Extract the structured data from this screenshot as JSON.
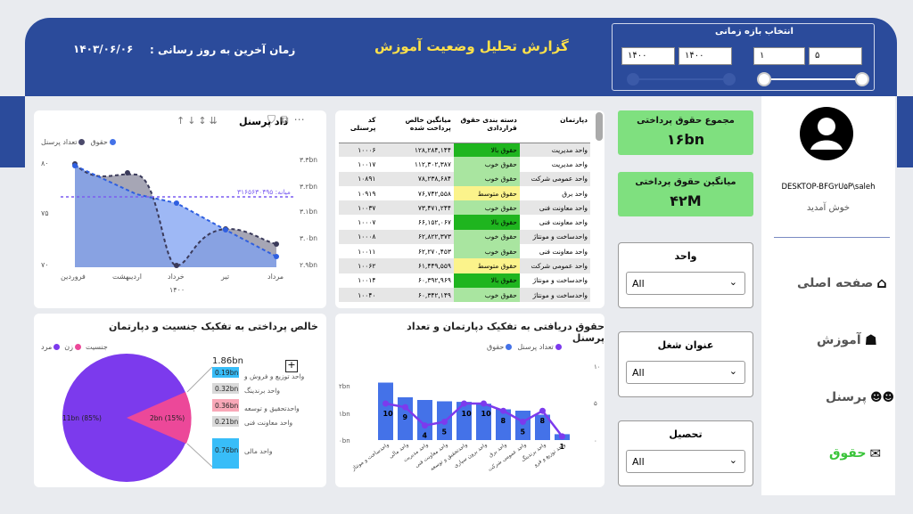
{
  "header": {
    "title": "گزارش تحلیل وضعیت آموزش",
    "last_update_label": "زمان آخرین به روز رسانی :",
    "last_update_value": "۱۴۰۳/۰۶/۰۶"
  },
  "date_range": {
    "label": "انتخاب بازه زمانی",
    "year_from": "۱۴۰۰",
    "year_to": "۱۴۰۰",
    "month_from": "۱",
    "month_to": "۵"
  },
  "line_chart": {
    "title": "داد پرسنل",
    "legend": [
      "حقوق",
      "تعداد پرسنل"
    ],
    "avg_label": "میانه: ۳۱۶۵۶۳۰۴۹۵",
    "year_label": "۱۴۰۰"
  },
  "table": {
    "headers": [
      "کد پرسنلی",
      "میانگین خالص پرداخت شده",
      "دسته بندی حقوق قراردادی",
      "دپارتمان"
    ],
    "rows": [
      {
        "code": "۱۰۰۰۶",
        "pay": "۱۲۸,۲۸۴,۱۴۴",
        "cat": "حقوق بالا",
        "dept": "واحد مدیریت",
        "color": "dark"
      },
      {
        "code": "۱۰۰۱۷",
        "pay": "۱۱۲,۳۰۲,۳۸۷",
        "cat": "حقوق خوب",
        "dept": "واحد مدیریت",
        "color": "light"
      },
      {
        "code": "۱۰۸۹۱",
        "pay": "۷۸,۲۳۸,۶۸۴",
        "cat": "حقوق خوب",
        "dept": "واحد عمومی شرکت",
        "color": "light"
      },
      {
        "code": "۱۰۹۱۹",
        "pay": "۷۶,۷۴۲,۵۵۸",
        "cat": "حقوق متوسط",
        "dept": "واحد برق",
        "color": "yellow"
      },
      {
        "code": "۱۰۰۳۷",
        "pay": "۷۳,۴۷۱,۲۴۴",
        "cat": "حقوق خوب",
        "dept": "واحد معاونت فنی",
        "color": "light"
      },
      {
        "code": "۱۰۰۰۷",
        "pay": "۶۶,۱۵۲,۰۶۷",
        "cat": "حقوق بالا",
        "dept": "واحد معاونت فنی",
        "color": "dark"
      },
      {
        "code": "۱۰۰۰۸",
        "pay": "۶۲,۸۲۲,۳۷۳",
        "cat": "حقوق خوب",
        "dept": "واحدساخت و مونتاژ",
        "color": "light"
      },
      {
        "code": "۱۰۰۱۱",
        "pay": "۶۲,۲۷۰,۴۵۳",
        "cat": "حقوق خوب",
        "dept": "واحد معاونت فنی",
        "color": "light"
      },
      {
        "code": "۱۰۰۶۲",
        "pay": "۶۱,۴۴۹,۵۵۹",
        "cat": "حقوق متوسط",
        "dept": "واحد عمومی شرکت",
        "color": "yellow"
      },
      {
        "code": "۱۰۰۱۴",
        "pay": "۶۰,۳۹۲,۹۶۹",
        "cat": "حقوق بالا",
        "dept": "واحدساخت و مونتاژ",
        "color": "dark"
      },
      {
        "code": "۱۰۰۴۰",
        "pay": "۶۰,۳۴۲,۱۴۹",
        "cat": "حقوق خوب",
        "dept": "واحدساخت و مونتاژ",
        "color": "light"
      }
    ]
  },
  "kpis": {
    "total_label": "مجموع حقوق پرداختی",
    "total_value": "۱۶bn",
    "avg_label": "میانگین حقوق پرداختی",
    "avg_value": "۴۲M"
  },
  "slicers": {
    "unit_label": "واحد",
    "job_label": "عنوان شغل",
    "edu_label": "تحصیل",
    "all": "All"
  },
  "profile": {
    "user": "DESKTOP-BFG۲U۵P\\saleh",
    "welcome": "خوش آمدید"
  },
  "nav": {
    "home": "صفحه اصلی",
    "education": "آموزش",
    "personnel": "پرسنل",
    "salary": "حقوق"
  },
  "pie_panel": {
    "title": "خالص پرداختی به تفکیک جنسیت و دپارتمان",
    "legend_title": "جنسیت",
    "legend": [
      "مرد",
      "زن"
    ],
    "total": "1.86bn",
    "dept_labels": [
      "واحد توزیع و فروش و",
      "واحد برندینگ",
      "واحدتحقیق و توسعه",
      "واحد معاونت فنی",
      "واحد مالی"
    ]
  },
  "bar_panel": {
    "title": "حقوق دریافتی به تفکیک دپارتمان و تعداد پرسنل",
    "legend": [
      "حقوق",
      "تعداد پرسنل"
    ],
    "categories": [
      "واحدساخت و مونتاژ",
      "واحد مالی",
      "واحد مدیریت",
      "واحد معاونت فنی",
      "واحدتحقیق و توسعه",
      "واحد برون سپاری",
      "واحد برق",
      "واحد عمومی شرکت",
      "واحد برندینگ",
      "واحد توزیع و فرو"
    ]
  },
  "chart_data": [
    {
      "type": "line",
      "title": "داد پرسنل",
      "x": [
        "فروردین",
        "اردیبهشت",
        "خرداد",
        "تیر",
        "مرداد"
      ],
      "xlabel": "۱۴۰۰",
      "series": [
        {
          "name": "حقوق",
          "values": [
            3.3,
            3.23,
            3.15,
            3.06,
            2.97
          ],
          "axis": "right"
        },
        {
          "name": "تعداد پرسنل",
          "values": [
            79,
            78,
            70,
            74,
            71
          ],
          "axis": "left"
        }
      ],
      "ylim_left": [
        70,
        80
      ],
      "yticks_left": [
        "۷۰",
        "۷۵",
        "۸۰"
      ],
      "yticks_right": [
        "۲.۹bn",
        "۳.۰bn",
        "۳.۱bn",
        "۳.۲bn",
        "۳.۳bn"
      ]
    },
    {
      "type": "pie",
      "title": "خالص پرداختی به تفکیک جنسیت و دپارتمان",
      "slices": [
        {
          "name": "مرد",
          "value": 11,
          "label": "11bn (85%)",
          "color": "#7c3aed"
        },
        {
          "name": "زن",
          "value": 2,
          "label": "2bn (15%)",
          "color": "#ec4899"
        }
      ],
      "breakdown": [
        {
          "label": "0.19bn",
          "color": "#38bdf8"
        },
        {
          "label": "0.32bn",
          "color": "#d9d9d9"
        },
        {
          "label": "0.36bn",
          "color": "#f9a8b8"
        },
        {
          "label": "0.21bn",
          "color": "#d9d9d9"
        },
        {
          "label": "0.76bn",
          "color": "#38bdf8"
        }
      ]
    },
    {
      "type": "bar",
      "title": "حقوق دریافتی به تفکیک دپارتمان و تعداد پرسنل",
      "categories": [
        "واحدساخت و مونتاژ",
        "واحد مالی",
        "واحد مدیریت",
        "واحد معاونت فنی",
        "واحدتحقیق و توسعه",
        "واحد برون سپاری",
        "واحد برق",
        "واحد عمومی شرکت",
        "واحد برندینگ",
        "واحد توزیع و فرو"
      ],
      "series": [
        {
          "name": "حقوق",
          "values": [
            2.15,
            1.6,
            1.5,
            1.45,
            1.43,
            1.36,
            1.15,
            1.1,
            0.95,
            0.22
          ]
        },
        {
          "name": "تعداد پرسنل",
          "values": [
            10,
            9,
            4,
            5,
            10,
            10,
            8,
            5,
            8,
            1
          ]
        }
      ],
      "yticks_left": [
        "۰bn",
        "۱bn",
        "۲bn"
      ],
      "yticks_right": [
        "۰",
        "۵",
        "۱۰"
      ]
    }
  ]
}
